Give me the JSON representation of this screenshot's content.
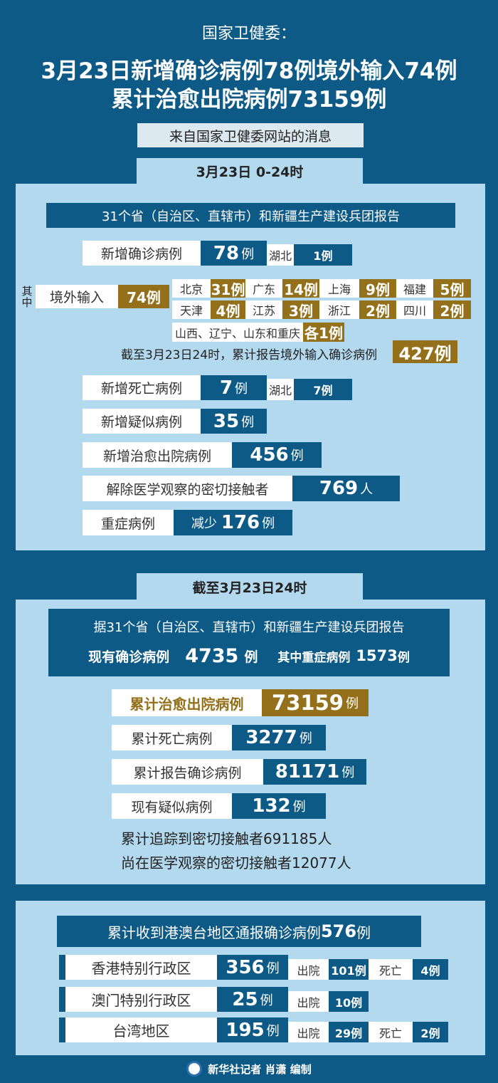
{
  "header": {
    "source": "国家卫健委：",
    "title_line1": "3月23日新增确诊病例78例境外输入74例",
    "title_line2": "累计治愈出院病例73159例",
    "subtitle": "来自国家卫健委网站的消息"
  },
  "daily": {
    "tab": "3月23日 0-24时",
    "banner": "31个省（自治区、直辖市）和新疆生产建设兵团报告",
    "new_confirmed": {
      "label": "新增确诊病例",
      "value": "78",
      "unit": "例",
      "region": "湖北",
      "region_value": "1例"
    },
    "among_label": "其中",
    "imported": {
      "label": "境外输入",
      "value": "74例",
      "provinces": [
        {
          "name": "北京",
          "value": "31例"
        },
        {
          "name": "广东",
          "value": "14例"
        },
        {
          "name": "上海",
          "value": "9例"
        },
        {
          "name": "福建",
          "value": "5例"
        },
        {
          "name": "天津",
          "value": "4例"
        },
        {
          "name": "江苏",
          "value": "3例"
        },
        {
          "name": "浙江",
          "value": "2例"
        },
        {
          "name": "四川",
          "value": "2例"
        }
      ],
      "others": {
        "name": "山西、辽宁、山东和重庆",
        "value": "各1例"
      },
      "cumulative_text": "截至3月23日24时，累计报告境外输入确诊病例",
      "cumulative_value": "427例"
    },
    "new_deaths": {
      "label": "新增死亡病例",
      "value": "7",
      "unit": "例",
      "region": "湖北",
      "region_value": "7例"
    },
    "new_suspected": {
      "label": "新增疑似病例",
      "value": "35",
      "unit": "例"
    },
    "new_cured": {
      "label": "新增治愈出院病例",
      "value": "456",
      "unit": "例"
    },
    "released_contacts": {
      "label": "解除医学观察的密切接触者",
      "value": "769",
      "unit": "人"
    },
    "severe": {
      "label": "重症病例",
      "prefix": "减少",
      "value": "176",
      "unit": "例"
    }
  },
  "cumulative": {
    "tab": "截至3月23日24时",
    "banner_line": "据31个省（自治区、直辖市）和新疆生产建设兵团报告",
    "current_label": "现有确诊病例",
    "current_value": "4735",
    "current_unit": "例",
    "severe_label": "其中重症病例",
    "severe_value": "1573",
    "severe_unit": "例",
    "cured": {
      "label": "累计治愈出院病例",
      "value": "73159",
      "unit": "例"
    },
    "deaths": {
      "label": "累计死亡病例",
      "value": "3277",
      "unit": "例"
    },
    "confirmed": {
      "label": "累计报告确诊病例",
      "value": "81171",
      "unit": "例"
    },
    "suspected": {
      "label": "现有疑似病例",
      "value": "132",
      "unit": "例"
    },
    "traced_text": "累计追踪到密切接触者691185人",
    "observed_text": "尚在医学观察的密切接触者12077人"
  },
  "hmt": {
    "banner_text": "累计收到港澳台地区通报确诊病例",
    "banner_value": "576",
    "banner_unit": "例",
    "rows": [
      {
        "name": "香港特别行政区",
        "value": "356",
        "unit": "例",
        "discharged_label": "出院",
        "discharged": "101例",
        "death_label": "死亡",
        "deaths": "4例"
      },
      {
        "name": "澳门特别行政区",
        "value": "25",
        "unit": "例",
        "discharged_label": "出院",
        "discharged": "10例"
      },
      {
        "name": "台湾地区",
        "value": "195",
        "unit": "例",
        "discharged_label": "出院",
        "discharged": "29例",
        "death_label": "死亡",
        "deaths": "2例"
      }
    ]
  },
  "footer": {
    "credit": "新华社记者 肖潇 编制"
  },
  "colors": {
    "background": "#0d5a87",
    "panel": "#b3d9ee",
    "gold": "#94701a"
  }
}
